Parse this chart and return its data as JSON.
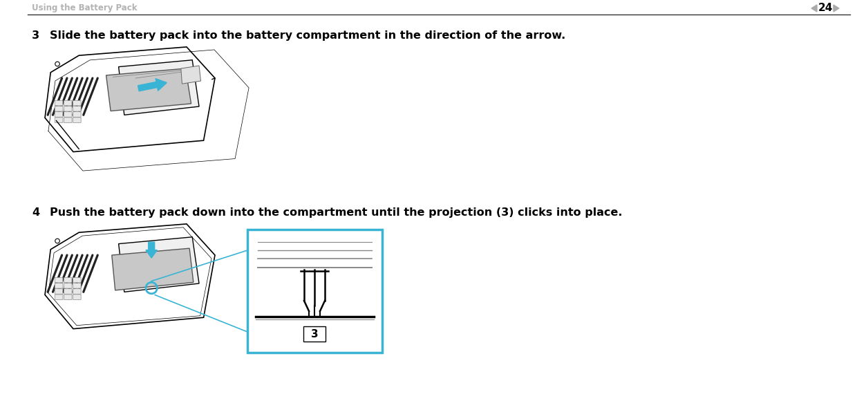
{
  "bg_color": "#ffffff",
  "header_text": "Using the Battery Pack",
  "header_color": "#b3b3b3",
  "page_number": "24",
  "page_num_color": "#000000",
  "arrow_nav_color": "#aaaaaa",
  "divider_color": "#333333",
  "step3_num": "3",
  "step3_text": "Slide the battery pack into the battery compartment in the direction of the arrow.",
  "step4_num": "4",
  "step4_text": "Push the battery pack down into the compartment until the projection (3) clicks into place.",
  "text_color": "#000000",
  "step_num_color": "#000000",
  "cyan_color": "#3ab4d4",
  "light_gray": "#d0d0d0",
  "mid_gray": "#aaaaaa",
  "dark_gray": "#444444",
  "label3_text": "3",
  "font_size_header": 8.5,
  "font_size_step": 11.5,
  "font_size_page": 11
}
